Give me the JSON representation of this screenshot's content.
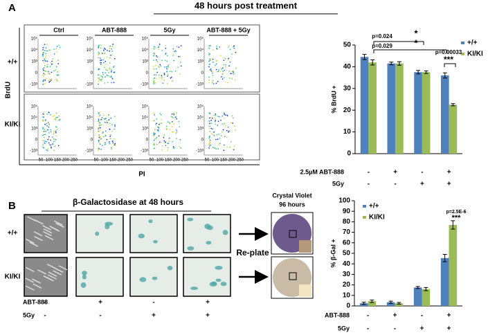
{
  "panel_a": {
    "label": "A",
    "title": "48 hours post treatment",
    "columns": [
      "Ctrl",
      "ABT-888",
      "5Gy",
      "ABT-888 + 5Gy"
    ],
    "rows": [
      "+/+",
      "KI/KI"
    ],
    "y_axis": "BrdU",
    "x_axis": "PI",
    "flow_xticks": [
      "50",
      "100",
      "150",
      "200",
      "250"
    ],
    "flow_yticks": [
      "10⁵",
      "10⁴",
      "10³",
      "0",
      "-10³"
    ]
  },
  "panel_b": {
    "label": "B",
    "title": "β-Galactosidase at 48 hours",
    "rows": [
      "+/+",
      "KI/KI"
    ],
    "conditions": [
      {
        "label": "ABT-888",
        "signs": [
          "-",
          "+",
          "-",
          "+"
        ]
      },
      {
        "label": "5Gy",
        "signs": [
          "-",
          "-",
          "+",
          "+"
        ]
      }
    ],
    "replate": "Re-plate",
    "crystal_violet": [
      "Crystal Violet",
      "96 hours"
    ]
  },
  "chart_data": [
    {
      "type": "bar",
      "y_label": "% BrdU +",
      "ylim": [
        0,
        50
      ],
      "yticks": [
        0,
        10,
        20,
        30,
        40,
        50
      ],
      "legend": "outside right",
      "series": [
        {
          "name": "+/+",
          "color": "#4f81bd",
          "values": [
            44.5,
            41.5,
            37.5,
            36
          ],
          "errors": [
            1.2,
            0.6,
            0.8,
            1.2
          ]
        },
        {
          "name": "KI/KI",
          "color": "#9bbb59",
          "values": [
            42,
            41.5,
            37.5,
            22.5
          ],
          "errors": [
            1.2,
            0.8,
            0.6,
            0.5
          ]
        }
      ],
      "conditions": [
        {
          "label": "2.5µM ABT-888",
          "signs": [
            "-",
            "+",
            "-",
            "+"
          ]
        },
        {
          "label": "5Gy",
          "signs": [
            "-",
            "-",
            "+",
            "+"
          ]
        }
      ],
      "annotations": [
        "p=0.024",
        "*",
        "p=0.029",
        "*",
        "p=0.00033",
        "***"
      ]
    },
    {
      "type": "bar",
      "y_label": "% β-Gal +",
      "ylim": [
        0,
        100
      ],
      "yticks": [
        0,
        10,
        20,
        30,
        40,
        50,
        60,
        70,
        80,
        90,
        100
      ],
      "legend": "upper left",
      "series": [
        {
          "name": "+/+",
          "color": "#4f81bd",
          "values": [
            2.5,
            3.5,
            17.5,
            45.5
          ],
          "errors": [
            1,
            1,
            1,
            3.5
          ]
        },
        {
          "name": "KI/KI",
          "color": "#9bbb59",
          "values": [
            4.5,
            2.5,
            16,
            77
          ],
          "errors": [
            1.2,
            0.8,
            1.5,
            4
          ]
        }
      ],
      "conditions": [
        {
          "label": "ABT-888",
          "signs": [
            "-",
            "+",
            "-",
            "+"
          ]
        },
        {
          "label": "5Gy",
          "signs": [
            "-",
            "-",
            "+",
            "+"
          ]
        }
      ],
      "annotations": [
        "p=2.5E-6",
        "***"
      ]
    }
  ]
}
